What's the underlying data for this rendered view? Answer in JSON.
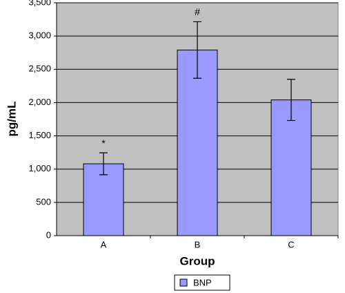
{
  "chart_data": {
    "type": "bar",
    "x_label": "Group",
    "y_label": "pg/mL",
    "categories": [
      "A",
      "B",
      "C"
    ],
    "series": [
      {
        "name": "BNP",
        "color": "#9999ff",
        "values": [
          1080,
          2790,
          2040
        ],
        "errors": [
          165,
          425,
          310
        ],
        "annotations": [
          "*",
          "#",
          null
        ]
      }
    ],
    "ylim": [
      0,
      3500
    ],
    "yticks": [
      0,
      500,
      {
        "value": 1000,
        "label": "1,000"
      },
      {
        "value": 1500,
        "label": "1,500"
      },
      {
        "value": 2000,
        "label": "2,000"
      },
      {
        "value": 2500,
        "label": "2,500"
      },
      {
        "value": 3000,
        "label": "3,000"
      },
      {
        "value": 3500,
        "label": "3,500"
      }
    ],
    "grid": true,
    "plot_background": "#c0c0c0",
    "legend": "bottom"
  }
}
